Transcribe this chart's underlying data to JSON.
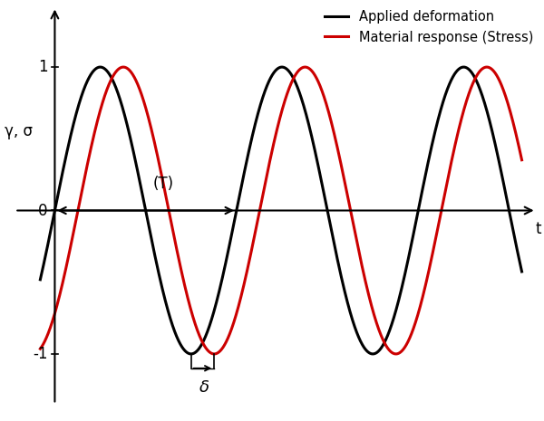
{
  "xlabel": "t",
  "ylabel": "γ, σ",
  "legend_labels": [
    "Applied deformation",
    "Material response (Stress)"
  ],
  "legend_colors": [
    "#000000",
    "#cc0000"
  ],
  "black_color": "#000000",
  "red_color": "#cc0000",
  "period_label": "(T)",
  "phase_label": "δ",
  "line_width": 2.2,
  "background_color": "#ffffff",
  "phase_shift_rad": 0.8,
  "num_cycles": 2.55,
  "ylim": [
    -1.45,
    1.45
  ],
  "tick_nonzero": [
    -1,
    1
  ],
  "tick_nonzero_labels": [
    "-1",
    "1"
  ]
}
